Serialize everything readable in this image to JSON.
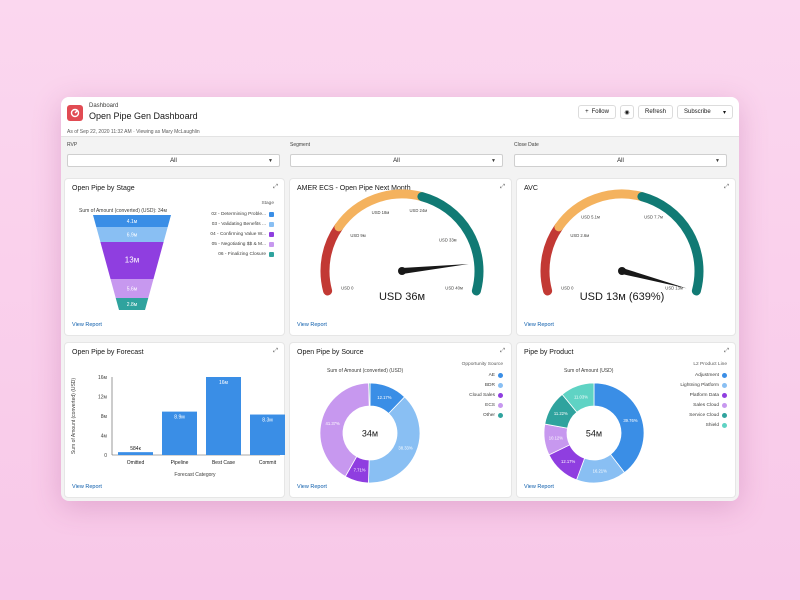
{
  "header": {
    "breadcrumb": "Dashboard",
    "title": "Open Pipe Gen Dashboard",
    "follow": "Follow",
    "refresh": "Refresh",
    "subscribe": "Subscribe",
    "as_of": "As of Sep 22, 2020 11:32 AM · Viewing as Mary McLaughlin"
  },
  "filters": [
    {
      "label": "RVP",
      "value": "All"
    },
    {
      "label": "Segment",
      "value": "All"
    },
    {
      "label": "Close Date",
      "value": "All"
    }
  ],
  "view_report": "View Report",
  "cards": {
    "stage": {
      "title": "Open Pipe by Stage"
    },
    "amer": {
      "title": "AMER ECS - Open Pipe Next Month"
    },
    "avc": {
      "title": "AVC"
    },
    "forecast": {
      "title": "Open Pipe by Forecast"
    },
    "source": {
      "title": "Open Pipe by Source"
    },
    "product": {
      "title": "Pipe by Product"
    }
  },
  "chart_data": [
    {
      "type": "funnel",
      "title": "Sum of Amount (converted) (USD): 34м",
      "legend_title": "Stage",
      "categories": [
        "02 - Determining Proble...",
        "03 - Validating Benefits ...",
        "04 - Confirming Value W...",
        "05 - Negotiating $$ & M...",
        "06 - Finalizing Closure"
      ],
      "labels": [
        "4.1м",
        "6.9м",
        "13м",
        "5.6м",
        "2.8м"
      ],
      "values": [
        4.1,
        6.9,
        13,
        5.6,
        2.8
      ],
      "colors": [
        "#3a8ee6",
        "#89bff3",
        "#8f3ee0",
        "#c798ef",
        "#2fa39e"
      ]
    },
    {
      "type": "gauge",
      "title": "AMER ECS - Open Pipe Next Month",
      "value_label": "USD 36м",
      "ticks": [
        "USD 0",
        "USD 9м",
        "USD 18м",
        "USD 24м",
        "USD 33м",
        "USD 40м"
      ],
      "bands": [
        "#c23934",
        "#f4b25e",
        "#117a74"
      ],
      "needle_fraction": 0.9
    },
    {
      "type": "gauge",
      "title": "AVC",
      "value_label": "USD 13м (639%)",
      "ticks": [
        "USD 0",
        "USD 2.6м",
        "USD 5.1м",
        "USD 7.7м",
        "USD 13м"
      ],
      "bands": [
        "#c23934",
        "#f4b25e",
        "#117a74"
      ],
      "needle_fraction": 1.0
    },
    {
      "type": "bar",
      "title": "Open Pipe by Forecast",
      "xlabel": "Forecast Category",
      "ylabel": "Sum of Amount (converted) (USD)",
      "categories": [
        "Omitted",
        "Pipeline",
        "Best Case",
        "Commit"
      ],
      "values": [
        0.584,
        8.9,
        16,
        8.3
      ],
      "labels": [
        "584к",
        "8.9м",
        "16м",
        "8.3м"
      ],
      "yticks": [
        "0",
        "4м",
        "8м",
        "12м",
        "16м"
      ],
      "ylim": [
        0,
        16
      ]
    },
    {
      "type": "donut",
      "title": "Sum of Amount (converted) (USD)",
      "center": "34м",
      "legend_title": "Opportunity Source",
      "categories": [
        "AE",
        "BDR",
        "Cloud Sales",
        "ECS",
        "Other"
      ],
      "values": [
        12.17,
        38.33,
        7.71,
        41.37,
        0.42
      ],
      "labels": [
        "12.17%",
        "38.33%",
        "7.71%",
        "41.37%",
        ""
      ],
      "colors": [
        "#3a8ee6",
        "#89bff3",
        "#8f3ee0",
        "#c798ef",
        "#2fa39e"
      ]
    },
    {
      "type": "donut",
      "title": "Sum of Amount (USD)",
      "center": "54м",
      "legend_title": "L2 Product Line",
      "categories": [
        "Adjustment",
        "Lightning Platform",
        "Platform Data",
        "Sales Cloud",
        "Service Cloud",
        "Shield"
      ],
      "values": [
        39.76,
        16.21,
        12.17,
        10.12,
        11.22,
        11.03
      ],
      "labels": [
        "39.76%",
        "16.21%",
        "12.17%",
        "10.12%",
        "11.22%",
        "11.03%"
      ],
      "colors": [
        "#3a8ee6",
        "#89bff3",
        "#8f3ee0",
        "#c798ef",
        "#2fa39e",
        "#5fd3c4"
      ]
    }
  ]
}
